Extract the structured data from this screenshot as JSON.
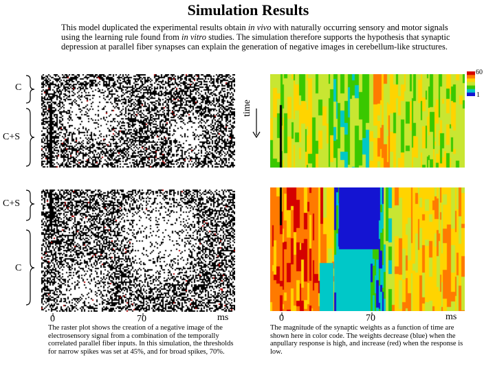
{
  "title": "Simulation Results",
  "intro": {
    "p1": "This model duplicated the experimental results obtain ",
    "em1": "in vivo",
    "p2": " with naturally occurring sensory and motor signals using the learning rule found from ",
    "em2": "in vitro",
    "p3": " studies.  The simulation therefore supports the hypothesis that synaptic depression at parallel fiber synapses can explain the generation of negative images in cerebellum-like structures."
  },
  "labels": {
    "top_c": "C",
    "top_cs": "C+S",
    "bottom_cs": "C+S",
    "bottom_c": "C",
    "time": "time"
  },
  "axis": {
    "tick0": "0",
    "tick70": "70",
    "unit": "ms"
  },
  "colorbar": {
    "max": "60",
    "min": "1",
    "colors": [
      "#d40000",
      "#ff7a00",
      "#ffd400",
      "#c8e632",
      "#39c800",
      "#00c8c8",
      "#1414d2"
    ]
  },
  "captions": {
    "left": "The raster plot shows the creation of a negative image of the electrosensory signal from a combination of the temporally correlated parallel fiber inputs.  In this simulation, the thresholds for narrow spikes was set at 45%, and for broad spikes, 70%.",
    "right": "The magnitude of the synaptic weights as a function of time are shown here in color code. The weights decrease (blue) when the anpullary response is high, and increase (red) when the response is low."
  }
}
